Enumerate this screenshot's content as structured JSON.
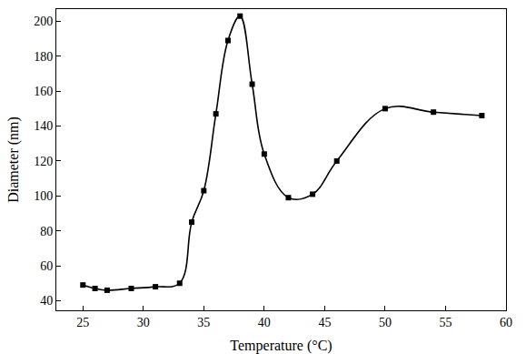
{
  "chart_data": {
    "type": "line",
    "x_label": "Temperature (°C)",
    "y_label": "Diameter (nm)",
    "x": [
      25,
      26,
      27,
      29,
      31,
      33,
      34,
      35,
      36,
      37,
      38,
      39,
      40,
      42,
      44,
      46,
      50,
      54,
      58
    ],
    "values": [
      49,
      47,
      46,
      47,
      48,
      50,
      85,
      103,
      147,
      189,
      203,
      164,
      124,
      99,
      101,
      120,
      150,
      148,
      146
    ],
    "color": "#000000",
    "marker": "square",
    "line_style": "spline",
    "xlim": [
      22.8,
      60
    ],
    "xticks": [
      25,
      30,
      35,
      40,
      45,
      50,
      55,
      60
    ],
    "ylim": [
      34.5,
      207
    ],
    "yticks": [
      40,
      60,
      80,
      100,
      120,
      140,
      160,
      180,
      200
    ],
    "grid": false
  }
}
